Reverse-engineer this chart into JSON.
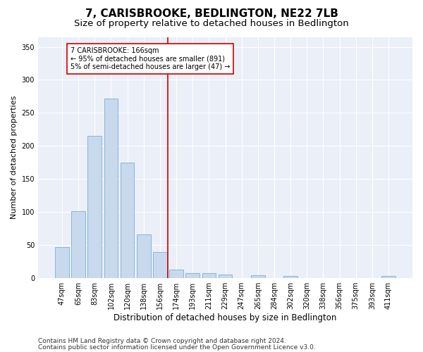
{
  "title": "7, CARISBROOKE, BEDLINGTON, NE22 7LB",
  "subtitle": "Size of property relative to detached houses in Bedlington",
  "xlabel": "Distribution of detached houses by size in Bedlington",
  "ylabel": "Number of detached properties",
  "bar_color": "#c8d9ee",
  "bar_edge_color": "#7aafd4",
  "background_color": "#eaeff8",
  "grid_color": "#ffffff",
  "vline_color": "#cc0000",
  "vline_index": 7,
  "annotation_text": "7 CARISBROOKE: 166sqm\n← 95% of detached houses are smaller (891)\n5% of semi-detached houses are larger (47) →",
  "annotation_box_color": "#cc0000",
  "categories": [
    "47sqm",
    "65sqm",
    "83sqm",
    "102sqm",
    "120sqm",
    "138sqm",
    "156sqm",
    "174sqm",
    "193sqm",
    "211sqm",
    "229sqm",
    "247sqm",
    "265sqm",
    "284sqm",
    "302sqm",
    "320sqm",
    "338sqm",
    "356sqm",
    "375sqm",
    "393sqm",
    "411sqm"
  ],
  "values": [
    47,
    101,
    215,
    272,
    175,
    66,
    39,
    13,
    7,
    7,
    5,
    0,
    4,
    0,
    3,
    0,
    0,
    0,
    0,
    0,
    3
  ],
  "ylim": [
    0,
    365
  ],
  "yticks": [
    0,
    50,
    100,
    150,
    200,
    250,
    300,
    350
  ],
  "footer1": "Contains HM Land Registry data © Crown copyright and database right 2024.",
  "footer2": "Contains public sector information licensed under the Open Government Licence v3.0.",
  "title_fontsize": 11,
  "subtitle_fontsize": 9.5,
  "xlabel_fontsize": 8.5,
  "ylabel_fontsize": 8,
  "tick_fontsize": 7,
  "footer_fontsize": 6.5
}
